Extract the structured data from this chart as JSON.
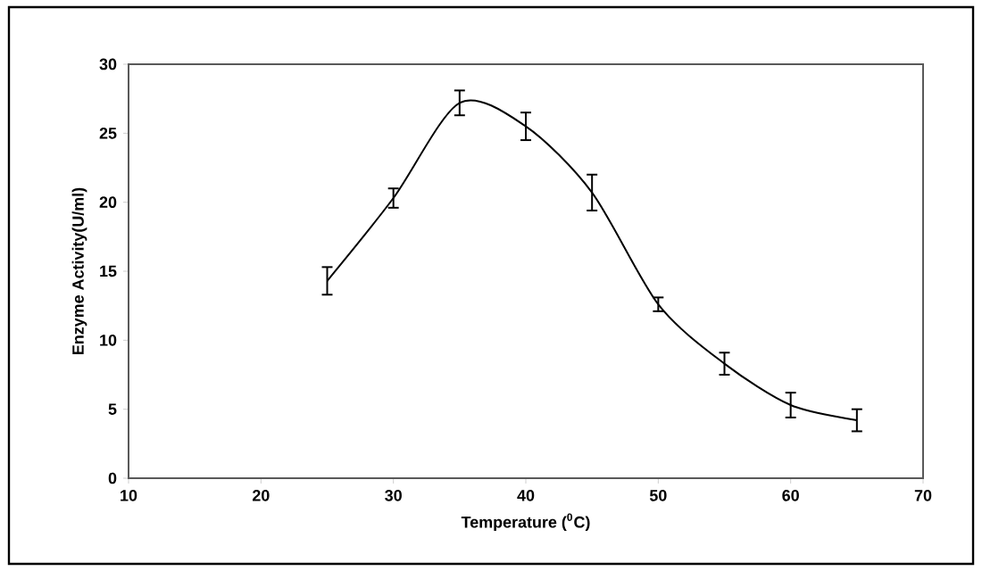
{
  "chart_data": {
    "type": "line",
    "xlabel": "Temperature ($^{0}$C)",
    "ylabel": "Enzyme Activity(U/ml)",
    "x": [
      25,
      30,
      35,
      40,
      45,
      50,
      55,
      60,
      65
    ],
    "series": [
      {
        "color": "#000000",
        "values": [
          14.3,
          20.3,
          27.2,
          25.5,
          20.7,
          12.6,
          8.3,
          5.3,
          4.2
        ],
        "errors": [
          1.0,
          0.7,
          0.9,
          1.0,
          1.3,
          0.5,
          0.8,
          0.9,
          0.8
        ]
      }
    ],
    "xlim": [
      10,
      70
    ],
    "ylim": [
      0,
      30
    ],
    "xticks": [
      10,
      20,
      30,
      40,
      50,
      60,
      70
    ],
    "yticks": [
      0,
      5,
      10,
      15,
      20,
      25,
      30
    ],
    "line_style": "solid",
    "marker": "none"
  }
}
